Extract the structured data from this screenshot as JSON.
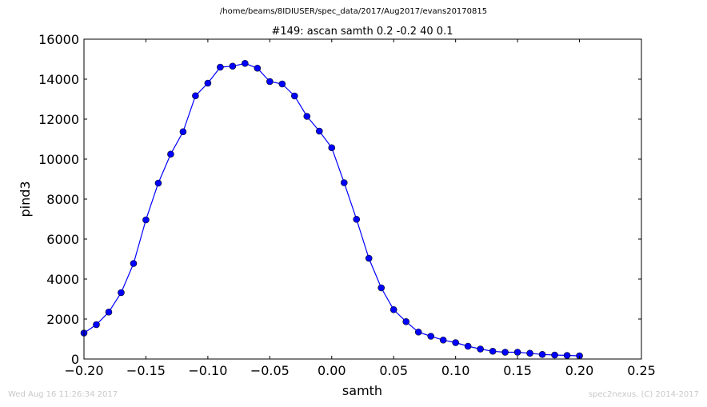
{
  "suptitle": "/home/beams/8IDIUSER/spec_data/2017/Aug2017/evans20170815",
  "footer": {
    "timestamp": "Wed Aug 16 11:26:34 2017",
    "credit": "spec2nexus, (C) 2014-2017"
  },
  "colors": {
    "line": "#0000ff",
    "marker": "#0000ff",
    "axes": "#000000"
  },
  "chart_data": {
    "type": "line",
    "title": "#149: ascan  samth 0.2 -0.2  40 0.1",
    "xlabel": "samth",
    "ylabel": "pind3",
    "xlim": [
      -0.2,
      0.25
    ],
    "ylim": [
      0,
      16000
    ],
    "xticks": [
      -0.2,
      -0.15,
      -0.1,
      -0.05,
      0.0,
      0.05,
      0.1,
      0.15,
      0.2,
      0.25
    ],
    "xtick_labels": [
      "−0.20",
      "−0.15",
      "−0.10",
      "−0.05",
      "0.00",
      "0.05",
      "0.10",
      "0.15",
      "0.20",
      "0.25"
    ],
    "yticks": [
      0,
      2000,
      4000,
      6000,
      8000,
      10000,
      12000,
      14000,
      16000
    ],
    "ytick_labels": [
      "0",
      "2000",
      "4000",
      "6000",
      "8000",
      "10000",
      "12000",
      "14000",
      "16000"
    ],
    "grid": false,
    "marker": "circle",
    "series": [
      {
        "x": [
          -0.2,
          -0.19,
          -0.18,
          -0.17,
          -0.16,
          -0.15,
          -0.14,
          -0.13,
          -0.12,
          -0.11,
          -0.1,
          -0.09,
          -0.08,
          -0.07,
          -0.06,
          -0.05,
          -0.04,
          -0.03,
          -0.02,
          -0.01,
          0.0,
          0.01,
          0.02,
          0.03,
          0.04,
          0.05,
          0.06,
          0.07,
          0.08,
          0.09,
          0.1,
          0.11,
          0.12,
          0.13,
          0.14,
          0.15,
          0.16,
          0.17,
          0.18,
          0.19,
          0.2
        ],
        "y": [
          1300,
          1720,
          2350,
          3320,
          4780,
          6960,
          8800,
          10250,
          11370,
          13170,
          13800,
          14600,
          14650,
          14790,
          14550,
          13880,
          13760,
          13160,
          12140,
          11400,
          10570,
          8820,
          6990,
          5040,
          3560,
          2470,
          1870,
          1350,
          1140,
          950,
          820,
          640,
          500,
          390,
          340,
          340,
          290,
          230,
          200,
          180,
          160
        ]
      }
    ]
  }
}
